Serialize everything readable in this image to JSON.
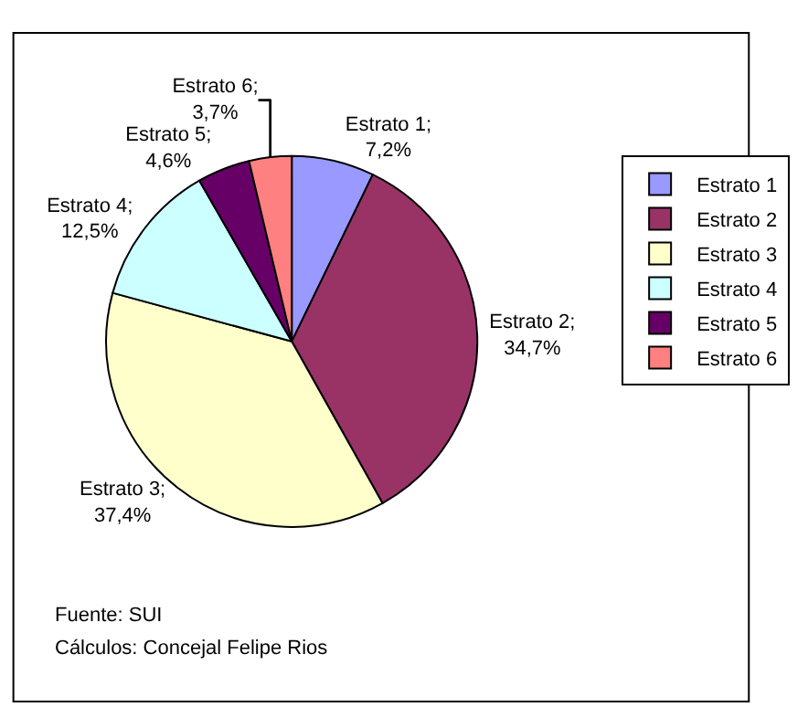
{
  "chart_data": {
    "type": "pie",
    "categories": [
      "Estrato 1",
      "Estrato 2",
      "Estrato 3",
      "Estrato 4",
      "Estrato 5",
      "Estrato 6"
    ],
    "values": [
      7.2,
      34.7,
      37.4,
      12.5,
      4.6,
      3.7
    ],
    "colors": [
      "#9999ff",
      "#993366",
      "#ffffcc",
      "#ccffff",
      "#660066",
      "#ff8080"
    ],
    "value_labels": [
      "Estrato 1;\n7,2%",
      "Estrato 2;\n34,7%",
      "Estrato 3;\n37,4%",
      "Estrato 4;\n12,5%",
      "Estrato 5;\n4,6%",
      "Estrato 6;\n3,7%"
    ],
    "legend": "right",
    "annotations": [
      "Fuente: SUI",
      "Cálculos: Concejal Felipe Rios"
    ]
  }
}
